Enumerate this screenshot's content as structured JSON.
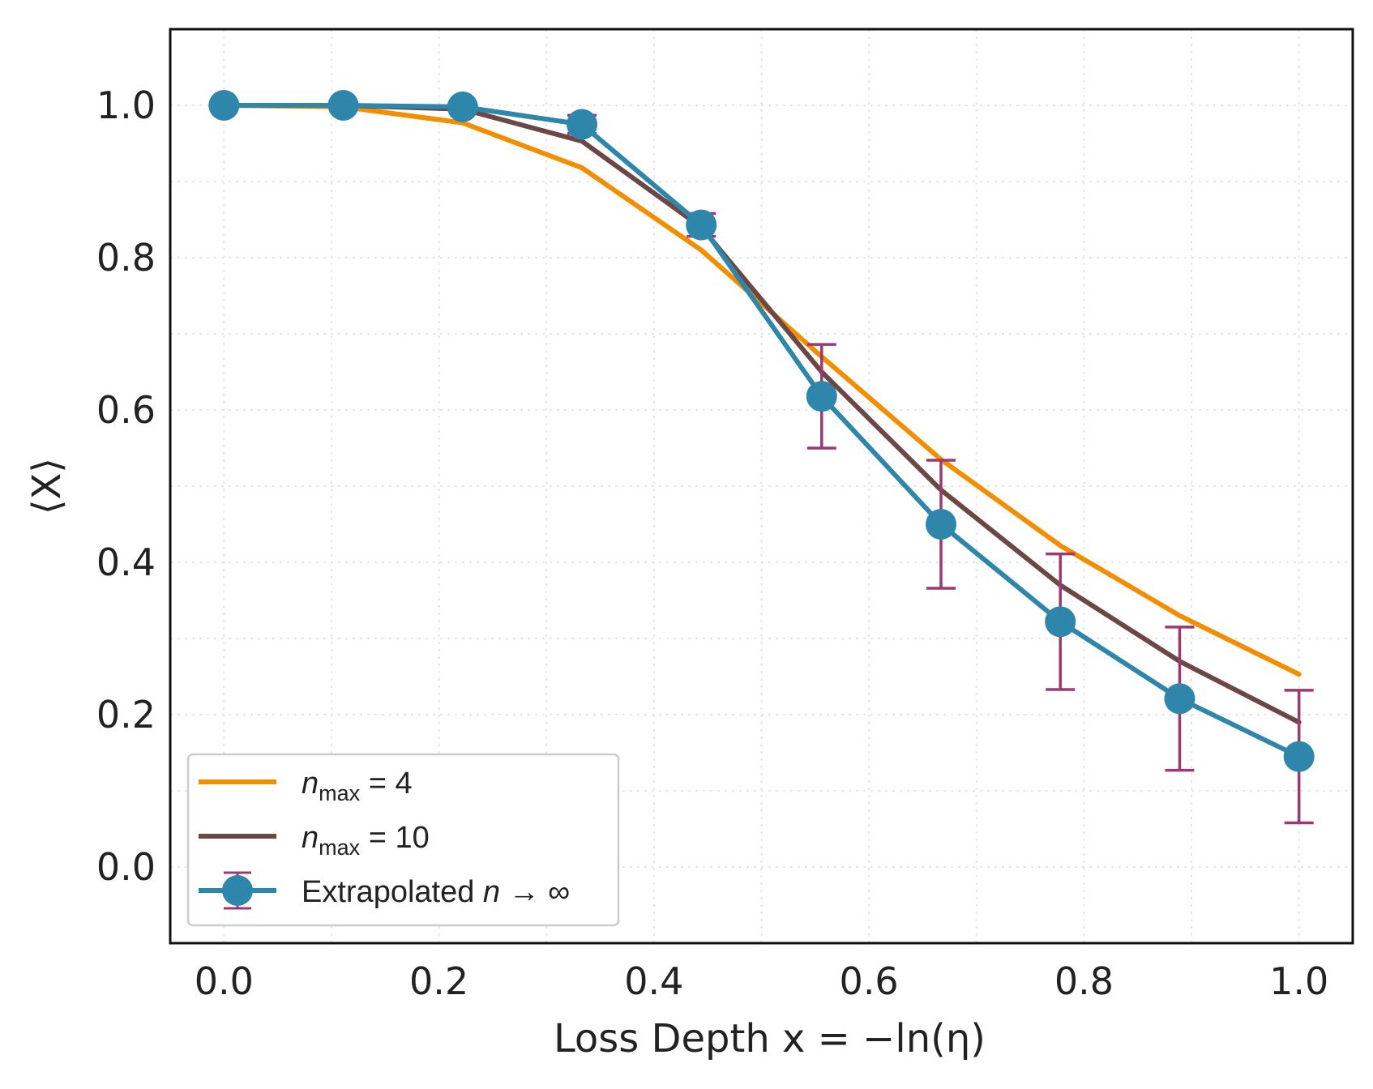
{
  "chart_data": {
    "type": "line",
    "title": "",
    "xlabel": "Loss Depth x = −ln(η)",
    "ylabel": "⟨X⟩",
    "xlim": [
      -0.05,
      1.05
    ],
    "ylim": [
      -0.1,
      1.1
    ],
    "grid": true,
    "legend_position": "lower-left",
    "x_ticks": [
      "0.0",
      "0.2",
      "0.4",
      "0.6",
      "0.8",
      "1.0"
    ],
    "y_ticks": [
      "0.0",
      "0.2",
      "0.4",
      "0.6",
      "0.8",
      "1.0"
    ],
    "x": [
      0.0,
      0.111,
      0.222,
      0.333,
      0.444,
      0.556,
      0.667,
      0.778,
      0.889,
      1.0
    ],
    "series": [
      {
        "name": "n_max = 4",
        "legend_main": "n",
        "legend_sub": "max",
        "legend_rest": " = 4",
        "color": "#f28e00",
        "values": [
          1.0,
          0.998,
          0.977,
          0.918,
          0.81,
          0.67,
          0.535,
          0.422,
          0.33,
          0.253
        ]
      },
      {
        "name": "n_max = 10",
        "legend_main": "n",
        "legend_sub": "max",
        "legend_rest": " = 10",
        "color": "#6b4746",
        "values": [
          1.0,
          1.0,
          0.995,
          0.953,
          0.84,
          0.65,
          0.495,
          0.37,
          0.27,
          0.19
        ]
      },
      {
        "name": "Extrapolated n → ∞",
        "legend_prefix": "Extrapolated ",
        "legend_main": "n",
        "legend_rest": " → ∞",
        "color": "#2e87aa",
        "errorbar_color": "#9b3a71",
        "values": [
          1.0,
          1.0,
          0.998,
          0.975,
          0.843,
          0.618,
          0.45,
          0.322,
          0.221,
          0.145
        ],
        "errors": [
          0.0,
          0.0,
          0.005,
          0.012,
          0.015,
          0.068,
          0.084,
          0.089,
          0.094,
          0.087
        ]
      }
    ]
  }
}
